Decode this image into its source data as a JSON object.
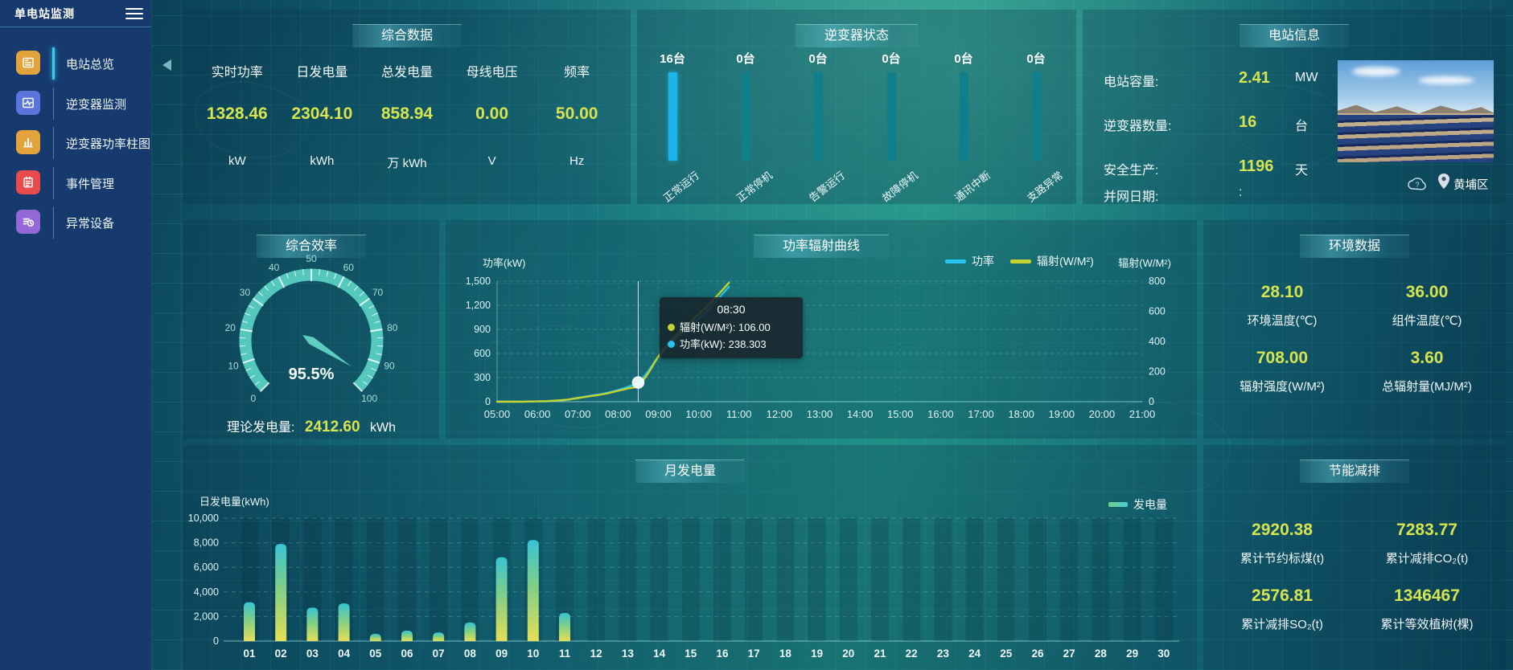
{
  "app": {
    "title": "单电站监测"
  },
  "sidebar": {
    "items": [
      {
        "label": "电站总览",
        "icon": "overview-icon",
        "color": "#E2A23C",
        "active": true
      },
      {
        "label": "逆变器监测",
        "icon": "inverter-monitor-icon",
        "color": "#5A75DD",
        "active": false
      },
      {
        "label": "逆变器功率柱图",
        "icon": "power-bars-icon",
        "color": "#E2A23C",
        "active": false
      },
      {
        "label": "事件管理",
        "icon": "event-manage-icon",
        "color": "#E94B4B",
        "active": false
      },
      {
        "label": "异常设备",
        "icon": "abnormal-device-icon",
        "color": "#9568D8",
        "active": false
      }
    ]
  },
  "panels": {
    "summary": {
      "title": "综合数据",
      "stats": [
        {
          "label": "实时功率",
          "value": "1328.46",
          "unit": "kW"
        },
        {
          "label": "日发电量",
          "value": "2304.10",
          "unit": "kWh"
        },
        {
          "label": "总发电量",
          "value": "858.94",
          "unit": "万 kWh"
        },
        {
          "label": "母线电压",
          "value": "0.00",
          "unit": "V"
        },
        {
          "label": "频率",
          "value": "50.00",
          "unit": "Hz"
        }
      ]
    },
    "inverter_status": {
      "title": "逆变器状态",
      "bars": [
        {
          "count": "16台",
          "label": "正常运行",
          "value": 16,
          "color": "#1db4ee"
        },
        {
          "count": "0台",
          "label": "正常停机",
          "value": 0,
          "color": "#117e8c"
        },
        {
          "count": "0台",
          "label": "告警运行",
          "value": 0,
          "color": "#117e8c"
        },
        {
          "count": "0台",
          "label": "故障停机",
          "value": 0,
          "color": "#117e8c"
        },
        {
          "count": "0台",
          "label": "通讯中断",
          "value": 0,
          "color": "#117e8c"
        },
        {
          "count": "0台",
          "label": "支路异常",
          "value": 0,
          "color": "#117e8c"
        }
      ]
    },
    "station_info": {
      "title": "电站信息",
      "rows": [
        {
          "label": "电站容量:",
          "value": "2.41",
          "unit": "MW"
        },
        {
          "label": "逆变器数量:",
          "value": "16",
          "unit": "台"
        },
        {
          "label": "安全生产:",
          "value": "1196",
          "unit": "天"
        },
        {
          "label": "并网日期:",
          "value": ":",
          "unit": ""
        }
      ],
      "location": "黄埔区"
    },
    "efficiency": {
      "title": "综合效率",
      "gauge_display": "95.5%",
      "theoretical": {
        "label": "理论发电量:",
        "value": "2412.60",
        "unit": "kWh"
      }
    },
    "power_curve": {
      "title": "功率辐射曲线",
      "legend": [
        {
          "label": "功率",
          "color": "#29c3ef"
        },
        {
          "label": "辐射(W/M²)",
          "color": "#c3d22e"
        }
      ],
      "left_axis": {
        "title": "功率(kW)",
        "ticks": [
          "1,500",
          "1,200",
          "900",
          "600",
          "300",
          "0"
        ]
      },
      "right_axis": {
        "title": "辐射(W/M²)",
        "ticks": [
          "800",
          "600",
          "400",
          "200",
          "0"
        ]
      },
      "tooltip": {
        "time": "08:30",
        "rows": [
          {
            "text": "辐射(W/M²): 106.00",
            "color": "#c3d22e"
          },
          {
            "text": "功率(kW): 238.303",
            "color": "#29c3ef"
          }
        ]
      }
    },
    "environment": {
      "title": "环境数据",
      "metrics": [
        {
          "value": "28.10",
          "label": "环境温度(℃)"
        },
        {
          "value": "36.00",
          "label": "组件温度(℃)"
        },
        {
          "value": "708.00",
          "label": "辐射强度(W/M²)"
        },
        {
          "value": "3.60",
          "label": "总辐射量(MJ/M²)"
        }
      ]
    },
    "monthly": {
      "title": "月发电量",
      "y_title": "日发电量(kWh)",
      "y_ticks": [
        "10,000",
        "8,000",
        "6,000",
        "4,000",
        "2,000",
        "0"
      ],
      "legend": [
        {
          "label": "发电量",
          "color_from": "#6fcf8e",
          "color_to": "#49ced2"
        }
      ]
    },
    "saving": {
      "title": "节能减排",
      "metrics": [
        {
          "value": "2920.38",
          "label": "累计节约标煤(t)"
        },
        {
          "value": "7283.77",
          "label": "累计减排CO₂(t)"
        },
        {
          "value": "2576.81",
          "label": "累计减排SO₂(t)"
        },
        {
          "value": "1346467",
          "label": "累计等效植树(棵)"
        }
      ]
    }
  },
  "chart_data": [
    {
      "id": "inverter_status",
      "type": "bar",
      "title": "逆变器状态",
      "unit": "台",
      "categories": [
        "正常运行",
        "正常停机",
        "告警运行",
        "故障停机",
        "通讯中断",
        "支路异常"
      ],
      "values": [
        16,
        0,
        0,
        0,
        0,
        0
      ]
    },
    {
      "id": "efficiency_gauge",
      "type": "gauge",
      "title": "综合效率",
      "value": 95.5,
      "min": 0,
      "max": 100,
      "tick_step": 10,
      "label": "95.5%"
    },
    {
      "id": "power_radiation",
      "type": "line",
      "title": "功率辐射曲线",
      "x_labels": [
        "05:00",
        "06:00",
        "07:00",
        "08:00",
        "09:00",
        "10:00",
        "11:00",
        "12:00",
        "13:00",
        "14:00",
        "15:00",
        "16:00",
        "17:00",
        "18:00",
        "19:00",
        "20:00",
        "21:00"
      ],
      "x_range_hours": [
        5,
        21
      ],
      "left_axis": {
        "label": "功率(kW)",
        "range": [
          0,
          1500
        ]
      },
      "right_axis": {
        "label": "辐射(W/M²)",
        "range": [
          0,
          800
        ]
      },
      "series": [
        {
          "name": "功率",
          "axis": "left",
          "color": "#29c3ef",
          "points": [
            [
              5,
              0
            ],
            [
              5.25,
              0
            ],
            [
              5.5,
              0
            ],
            [
              5.75,
              1
            ],
            [
              6,
              3
            ],
            [
              6.25,
              6
            ],
            [
              6.5,
              12
            ],
            [
              6.75,
              25
            ],
            [
              7,
              48
            ],
            [
              7.25,
              68
            ],
            [
              7.5,
              88
            ],
            [
              7.75,
              112
            ],
            [
              8,
              145
            ],
            [
              8.25,
              185
            ],
            [
              8.5,
              238.3
            ],
            [
              8.75,
              380
            ],
            [
              9,
              560
            ],
            [
              9.25,
              700
            ],
            [
              9.5,
              820
            ],
            [
              9.75,
              920
            ],
            [
              10,
              1030
            ],
            [
              10.25,
              1150
            ],
            [
              10.5,
              1290
            ],
            [
              10.75,
              1430
            ]
          ]
        },
        {
          "name": "辐射(W/M²)",
          "axis": "right",
          "color": "#c3d22e",
          "points": [
            [
              5,
              0
            ],
            [
              5.25,
              0
            ],
            [
              5.5,
              0
            ],
            [
              5.75,
              1
            ],
            [
              6,
              2
            ],
            [
              6.25,
              4
            ],
            [
              6.5,
              8
            ],
            [
              6.75,
              14
            ],
            [
              7,
              24
            ],
            [
              7.25,
              34
            ],
            [
              7.5,
              44
            ],
            [
              7.75,
              56
            ],
            [
              8,
              72
            ],
            [
              8.25,
              88
            ],
            [
              8.5,
              106
            ],
            [
              8.75,
              190
            ],
            [
              9,
              300
            ],
            [
              9.25,
              385
            ],
            [
              9.5,
              455
            ],
            [
              9.75,
              515
            ],
            [
              10,
              580
            ],
            [
              10.25,
              645
            ],
            [
              10.5,
              715
            ],
            [
              10.75,
              790
            ]
          ]
        }
      ],
      "highlight": {
        "time_hours": 8.5,
        "time": "08:30",
        "power": 238.303,
        "radiation": 106.0
      }
    },
    {
      "id": "monthly_generation",
      "type": "bar",
      "title": "月发电量",
      "ylabel": "日发电量(kWh)",
      "ylim": [
        0,
        10000
      ],
      "series_name": "发电量",
      "categories": [
        "01",
        "02",
        "03",
        "04",
        "05",
        "06",
        "07",
        "08",
        "09",
        "10",
        "11",
        "12",
        "13",
        "14",
        "15",
        "16",
        "17",
        "18",
        "19",
        "20",
        "21",
        "22",
        "23",
        "24",
        "25",
        "26",
        "27",
        "28",
        "29",
        "30"
      ],
      "values": [
        3160,
        7900,
        2720,
        3060,
        590,
        850,
        700,
        1510,
        6820,
        8220,
        2290,
        0,
        0,
        0,
        0,
        0,
        0,
        0,
        0,
        0,
        0,
        0,
        0,
        0,
        0,
        0,
        0,
        0,
        0,
        0
      ]
    }
  ]
}
